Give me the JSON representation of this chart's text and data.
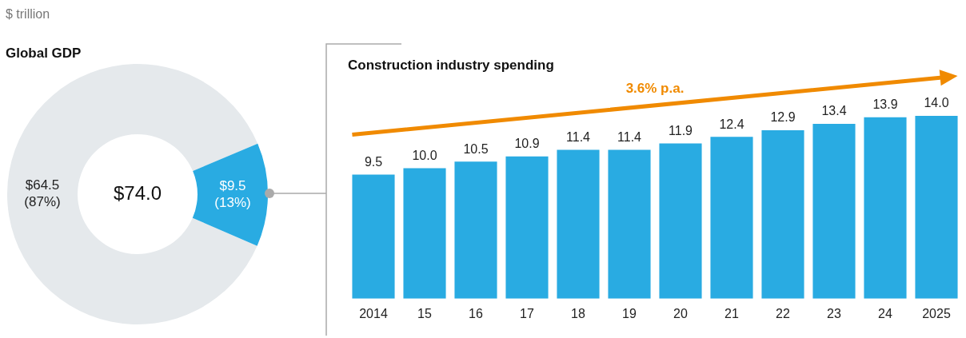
{
  "chart_data": [
    {
      "type": "donut",
      "title": "Global GDP",
      "subtitle": "$ trillion",
      "categories": [
        null,
        null
      ],
      "values": [
        64.5,
        9.5
      ],
      "colors": [
        "#e5e9ec",
        "#29abe2"
      ],
      "value_labels": [
        "$64.5\n(87%)",
        "$9.5\n(13%)"
      ],
      "annotations": [
        "$74.0"
      ],
      "legend": false
    },
    {
      "type": "bar",
      "title": "Construction industry spending",
      "categories": [
        "2014",
        "15",
        "16",
        "17",
        "18",
        "19",
        "20",
        "21",
        "22",
        "23",
        "24",
        "2025"
      ],
      "values": [
        9.5,
        10.0,
        10.5,
        10.9,
        11.4,
        11.4,
        11.9,
        12.4,
        12.9,
        13.4,
        13.9,
        14.0
      ],
      "color": "#29abe2",
      "value_labels": [
        "9.5",
        "10.0",
        "10.5",
        "10.9",
        "11.4",
        "11.4",
        "11.9",
        "12.4",
        "12.9",
        "13.4",
        "13.9",
        "14.0"
      ],
      "annotations": [
        "3.6% p.a."
      ],
      "grid": false,
      "legend": false
    }
  ]
}
